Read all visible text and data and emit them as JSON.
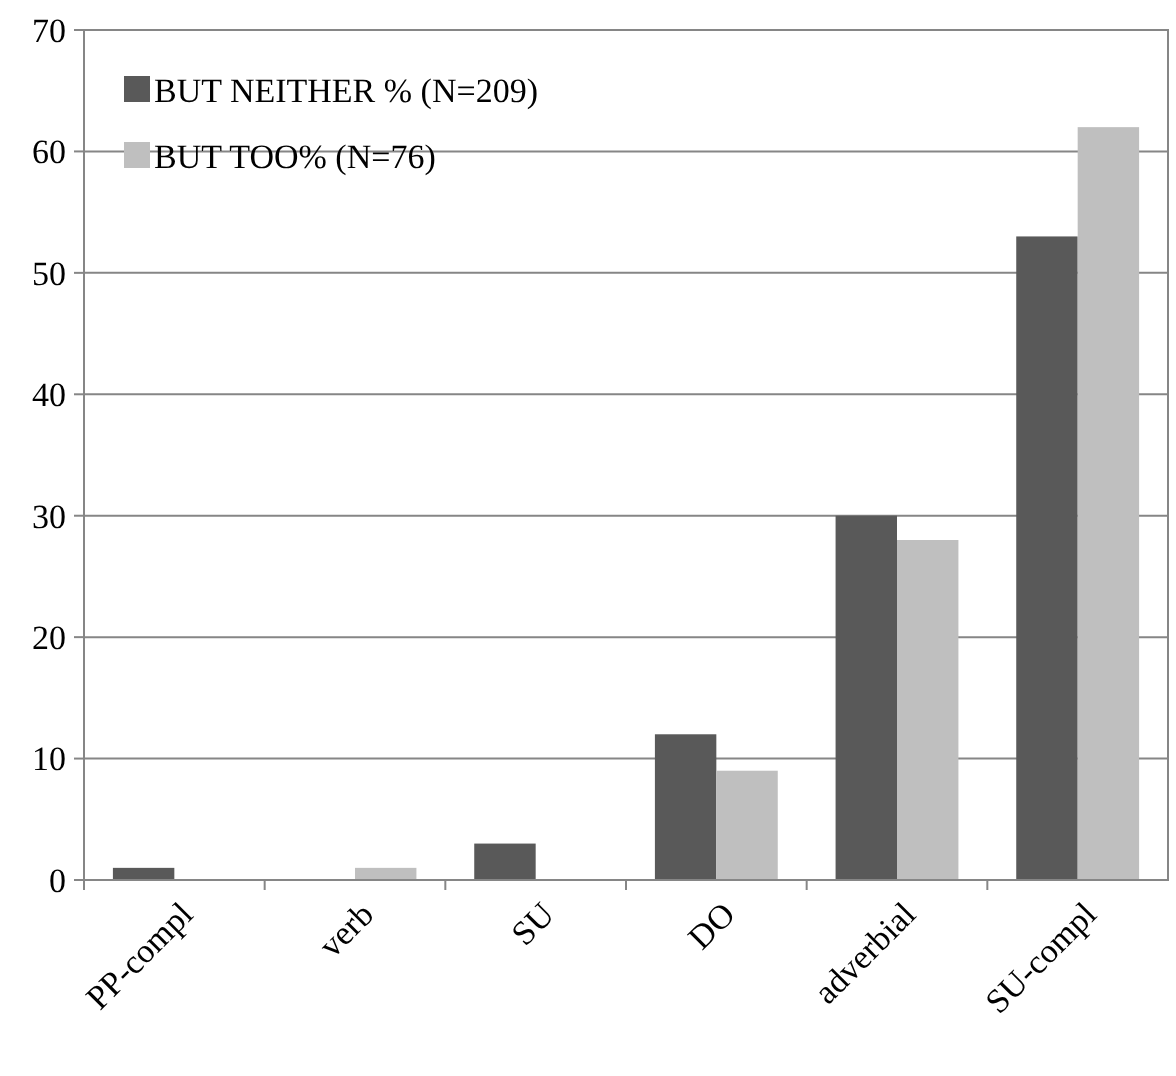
{
  "chart_data": {
    "type": "bar",
    "categories": [
      "PP-compl",
      "verb",
      "SU",
      "DO",
      "adverbial",
      "SU-compl"
    ],
    "series": [
      {
        "name": "BUT NEITHER % (N=209)",
        "color": "#595959",
        "values": [
          1,
          0,
          3,
          12,
          30,
          53
        ]
      },
      {
        "name": "BUT TOO% (N=76)",
        "color": "#bfbfbf",
        "values": [
          0,
          1,
          0,
          9,
          28,
          62
        ]
      }
    ],
    "ylim": [
      0,
      70
    ],
    "yticks": [
      0,
      10,
      20,
      30,
      40,
      50,
      60,
      70
    ],
    "grid": "y",
    "legend": "top left"
  }
}
